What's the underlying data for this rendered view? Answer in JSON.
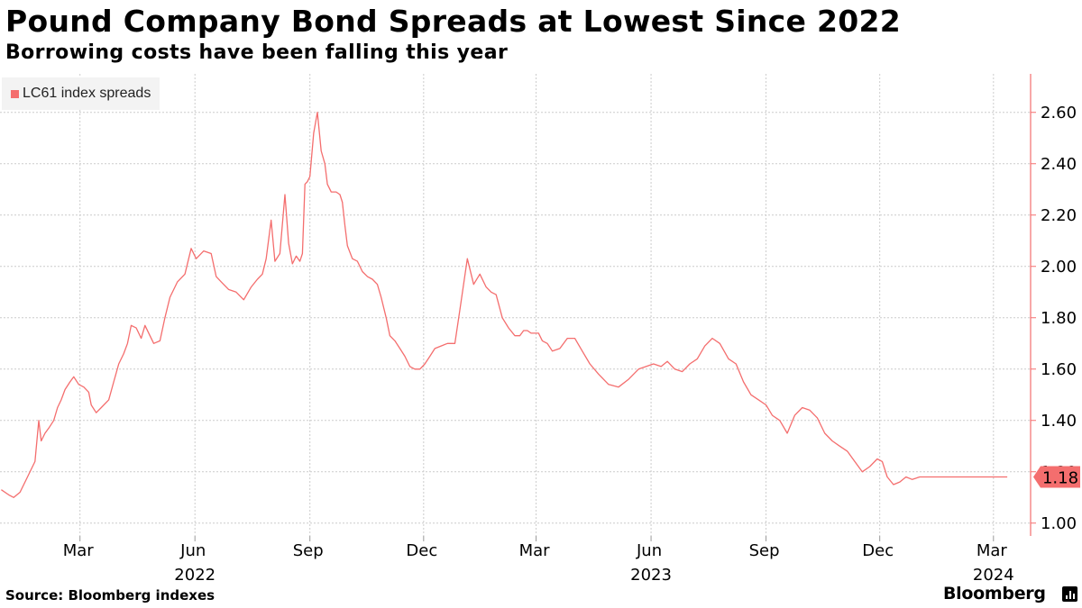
{
  "header": {
    "title": "Pound Company Bond Spreads at Lowest Since 2022",
    "subtitle": "Borrowing costs have been falling this year"
  },
  "footer": {
    "source": "Source: Bloomberg indexes",
    "brand": "Bloomberg"
  },
  "colors": {
    "series": "#f46e6e",
    "grid": "#cccccc",
    "axis": "#f46e6e",
    "legend_bg": "#f3f3f3"
  },
  "chart_data": {
    "type": "line",
    "title": "Pound Company Bond Spreads at Lowest Since 2022",
    "subtitle": "Borrowing costs have been falling this year",
    "xlabel": "",
    "ylabel": "",
    "ylim": [
      0.95,
      2.75
    ],
    "xlim": [
      "2021-12-27",
      "2024-03-30"
    ],
    "grid": true,
    "legend": "top-left",
    "y_ticks": [
      1.0,
      1.2,
      1.4,
      1.6,
      1.8,
      2.0,
      2.2,
      2.4,
      2.6
    ],
    "y_tick_labels": [
      "1.00",
      "1.20",
      "1.40",
      "1.60",
      "1.80",
      "2.00",
      "2.20",
      "2.40",
      "2.60"
    ],
    "x_ticks": [
      {
        "date": "2022-03-01",
        "label": "Mar",
        "year_label": ""
      },
      {
        "date": "2022-06-01",
        "label": "Jun",
        "year_label": "2022"
      },
      {
        "date": "2022-09-01",
        "label": "Sep",
        "year_label": ""
      },
      {
        "date": "2022-12-01",
        "label": "Dec",
        "year_label": ""
      },
      {
        "date": "2023-03-01",
        "label": "Mar",
        "year_label": ""
      },
      {
        "date": "2023-06-01",
        "label": "Jun",
        "year_label": "2023"
      },
      {
        "date": "2023-09-01",
        "label": "Sep",
        "year_label": ""
      },
      {
        "date": "2023-12-01",
        "label": "Dec",
        "year_label": ""
      },
      {
        "date": "2024-03-01",
        "label": "Mar",
        "year_label": "2024"
      }
    ],
    "last_value_label": "1.18",
    "series": [
      {
        "name": "LC61 index spreads",
        "x": [
          "2021-12-28",
          "2022-01-03",
          "2022-01-07",
          "2022-01-12",
          "2022-01-18",
          "2022-01-24",
          "2022-01-27",
          "2022-01-29",
          "2022-02-01",
          "2022-02-04",
          "2022-02-08",
          "2022-02-11",
          "2022-02-14",
          "2022-02-17",
          "2022-02-21",
          "2022-02-24",
          "2022-02-28",
          "2022-03-04",
          "2022-03-08",
          "2022-03-10",
          "2022-03-14",
          "2022-03-18",
          "2022-03-24",
          "2022-03-28",
          "2022-04-01",
          "2022-04-05",
          "2022-04-08",
          "2022-04-11",
          "2022-04-15",
          "2022-04-19",
          "2022-04-22",
          "2022-04-26",
          "2022-04-29",
          "2022-05-04",
          "2022-05-08",
          "2022-05-12",
          "2022-05-18",
          "2022-05-24",
          "2022-05-29",
          "2022-06-02",
          "2022-06-08",
          "2022-06-14",
          "2022-06-18",
          "2022-06-22",
          "2022-06-28",
          "2022-07-04",
          "2022-07-10",
          "2022-07-16",
          "2022-07-21",
          "2022-07-25",
          "2022-07-28",
          "2022-08-01",
          "2022-08-04",
          "2022-08-08",
          "2022-08-12",
          "2022-08-15",
          "2022-08-18",
          "2022-08-21",
          "2022-08-24",
          "2022-08-26",
          "2022-08-28",
          "2022-08-30",
          "2022-09-01",
          "2022-09-04",
          "2022-09-07",
          "2022-09-10",
          "2022-09-13",
          "2022-09-15",
          "2022-09-18",
          "2022-09-22",
          "2022-09-25",
          "2022-09-27",
          "2022-09-29",
          "2022-10-01",
          "2022-10-05",
          "2022-10-09",
          "2022-10-13",
          "2022-10-17",
          "2022-10-21",
          "2022-10-25",
          "2022-10-28",
          "2022-11-01",
          "2022-11-04",
          "2022-11-08",
          "2022-11-12",
          "2022-11-16",
          "2022-11-20",
          "2022-11-24",
          "2022-11-28",
          "2022-12-02",
          "2022-12-06",
          "2022-12-10",
          "2022-12-15",
          "2022-12-20",
          "2022-12-26",
          "2022-12-30",
          "2023-01-05",
          "2023-01-10",
          "2023-01-15",
          "2023-01-20",
          "2023-01-24",
          "2023-01-28",
          "2023-02-02",
          "2023-02-07",
          "2023-02-12",
          "2023-02-16",
          "2023-02-19",
          "2023-02-22",
          "2023-02-25",
          "2023-02-28",
          "2023-03-03",
          "2023-03-06",
          "2023-03-10",
          "2023-03-14",
          "2023-03-20",
          "2023-03-26",
          "2023-04-01",
          "2023-04-07",
          "2023-04-13",
          "2023-04-20",
          "2023-04-28",
          "2023-05-06",
          "2023-05-14",
          "2023-05-22",
          "2023-05-28",
          "2023-06-03",
          "2023-06-09",
          "2023-06-14",
          "2023-06-20",
          "2023-06-26",
          "2023-07-02",
          "2023-07-08",
          "2023-07-14",
          "2023-07-20",
          "2023-07-26",
          "2023-08-02",
          "2023-08-08",
          "2023-08-14",
          "2023-08-20",
          "2023-08-26",
          "2023-09-01",
          "2023-09-06",
          "2023-09-12",
          "2023-09-18",
          "2023-09-24",
          "2023-09-30",
          "2023-10-06",
          "2023-10-12",
          "2023-10-18",
          "2023-10-24",
          "2023-10-30",
          "2023-11-05",
          "2023-11-11",
          "2023-11-17",
          "2023-11-23",
          "2023-11-29",
          "2023-12-03",
          "2023-12-07",
          "2023-12-12",
          "2023-12-17",
          "2023-12-22",
          "2023-12-27",
          "2024-01-02",
          "2024-01-08",
          "2024-01-14",
          "2024-01-20",
          "2024-01-26",
          "2024-02-01",
          "2024-02-07",
          "2024-02-12",
          "2024-02-18",
          "2024-02-24",
          "2024-02-29",
          "2024-03-04",
          "2024-03-07",
          "2024-03-12"
        ],
        "values": [
          1.13,
          1.11,
          1.1,
          1.12,
          1.18,
          1.24,
          1.4,
          1.32,
          1.35,
          1.37,
          1.4,
          1.45,
          1.48,
          1.52,
          1.55,
          1.57,
          1.54,
          1.53,
          1.51,
          1.46,
          1.43,
          1.45,
          1.48,
          1.55,
          1.62,
          1.66,
          1.7,
          1.77,
          1.76,
          1.72,
          1.77,
          1.73,
          1.7,
          1.71,
          1.8,
          1.88,
          1.94,
          1.97,
          2.07,
          2.03,
          2.06,
          2.05,
          1.96,
          1.94,
          1.91,
          1.9,
          1.87,
          1.92,
          1.95,
          1.97,
          2.03,
          2.18,
          2.02,
          2.05,
          2.28,
          2.09,
          2.01,
          2.04,
          2.02,
          2.05,
          2.32,
          2.33,
          2.35,
          2.52,
          2.6,
          2.45,
          2.4,
          2.32,
          2.29,
          2.29,
          2.28,
          2.25,
          2.16,
          2.08,
          2.03,
          2.02,
          1.98,
          1.96,
          1.95,
          1.93,
          1.88,
          1.8,
          1.73,
          1.71,
          1.68,
          1.65,
          1.61,
          1.6,
          1.6,
          1.62,
          1.65,
          1.68,
          1.69,
          1.7,
          1.7,
          1.83,
          2.03,
          1.93,
          1.97,
          1.92,
          1.9,
          1.89,
          1.8,
          1.76,
          1.73,
          1.73,
          1.75,
          1.75,
          1.74,
          1.74,
          1.74,
          1.71,
          1.7,
          1.67,
          1.68,
          1.72,
          1.72,
          1.67,
          1.62,
          1.58,
          1.54,
          1.53,
          1.56,
          1.6,
          1.61,
          1.62,
          1.61,
          1.63,
          1.6,
          1.59,
          1.62,
          1.64,
          1.69,
          1.72,
          1.7,
          1.64,
          1.62,
          1.55,
          1.5,
          1.48,
          1.46,
          1.42,
          1.4,
          1.35,
          1.42,
          1.45,
          1.44,
          1.41,
          1.35,
          1.32,
          1.3,
          1.28,
          1.24,
          1.2,
          1.22,
          1.25,
          1.24,
          1.18,
          1.15,
          1.16,
          1.18,
          1.17,
          1.18,
          1.18,
          1.18,
          1.18,
          1.18,
          1.18,
          1.18,
          1.18,
          1.18,
          1.18,
          1.18,
          1.18,
          1.18,
          1.18
        ]
      }
    ]
  }
}
